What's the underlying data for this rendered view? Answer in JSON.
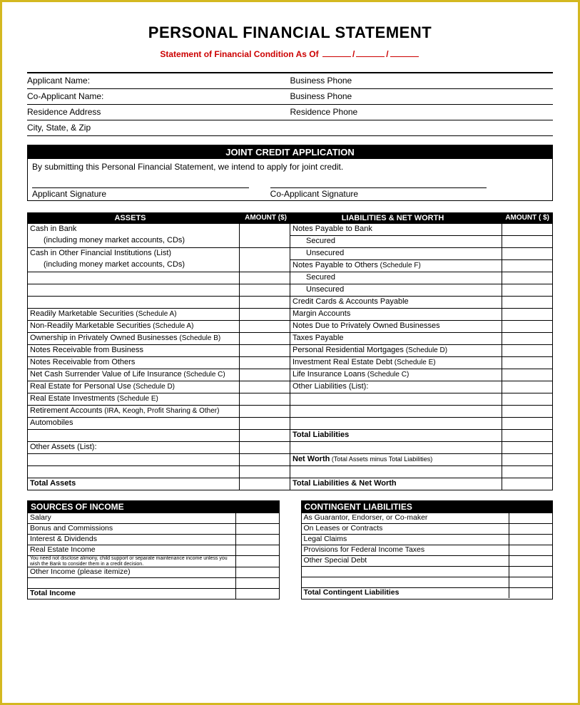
{
  "title": "PERSONAL FINANCIAL STATEMENT",
  "subtitle_prefix": "Statement of Financial Condition As Of ",
  "info": {
    "applicant_name": "Applicant Name:",
    "business_phone": "Business Phone",
    "co_applicant_name": "Co-Applicant Name:",
    "business_phone2": "Business Phone",
    "residence_address": "Residence Address",
    "residence_phone": "Residence Phone",
    "city_state_zip": "City, State, & Zip"
  },
  "joint": {
    "header": "JOINT CREDIT APPLICATION",
    "text": "By submitting this Personal Financial Statement, we intend to apply for joint credit.",
    "sig1": "Applicant Signature",
    "sig2": "Co-Applicant Signature"
  },
  "assets": {
    "header": "ASSETS",
    "amount": "AMOUNT ($)",
    "rows": [
      {
        "label": "Cash in Bank"
      },
      {
        "label": "(including money market accounts, CDs)",
        "indent": true,
        "noborder": true
      },
      {
        "label": "Cash in Other Financial Institutions (List)"
      },
      {
        "label": "(including money market accounts, CDs)",
        "indent": true,
        "noborder": true
      },
      {
        "label": ""
      },
      {
        "label": ""
      },
      {
        "label": ""
      },
      {
        "label": "Readily Marketable Securities",
        "sched": "(Schedule A)"
      },
      {
        "label": "Non-Readily Marketable Securities",
        "sched": "(Schedule A)"
      },
      {
        "label": "Ownership in Privately Owned Businesses",
        "sched": "(Schedule B)"
      },
      {
        "label": "Notes Receivable from Business"
      },
      {
        "label": "Notes Receivable from Others"
      },
      {
        "label": "Net Cash Surrender Value of Life Insurance",
        "sched": "(Schedule C)"
      },
      {
        "label": "Real Estate for Personal Use",
        "sched": "(Schedule D)"
      },
      {
        "label": "Real Estate Investments",
        "sched": "(Schedule E)"
      },
      {
        "label": "Retirement Accounts",
        "sched": "(IRA, Keogh, Profit Sharing & Other)"
      },
      {
        "label": "Automobiles"
      },
      {
        "label": ""
      },
      {
        "label": "Other Assets (List):"
      },
      {
        "label": ""
      },
      {
        "label": ""
      },
      {
        "label": "Total Assets",
        "bold": true
      }
    ]
  },
  "liabilities": {
    "header": "LIABILITIES & NET WORTH",
    "amount": "AMOUNT ( $)",
    "rows": [
      {
        "label": "Notes Payable to Bank"
      },
      {
        "label": "Secured",
        "indent": true
      },
      {
        "label": "Unsecured",
        "indent": true
      },
      {
        "label": "Notes Payable to Others",
        "sched": "(Schedule F)"
      },
      {
        "label": "Secured",
        "indent": true
      },
      {
        "label": "Unsecured",
        "indent": true
      },
      {
        "label": "Credit Cards & Accounts Payable"
      },
      {
        "label": "Margin Accounts"
      },
      {
        "label": "Notes Due to Privately Owned Businesses"
      },
      {
        "label": "Taxes Payable"
      },
      {
        "label": "Personal Residential Mortgages",
        "sched": "(Schedule D)"
      },
      {
        "label": "Investment Real Estate Debt",
        "sched": "(Schedule E)"
      },
      {
        "label": "Life Insurance Loans",
        "sched": "(Schedule C)"
      },
      {
        "label": "Other Liabilities (List):"
      },
      {
        "label": ""
      },
      {
        "label": ""
      },
      {
        "label": ""
      },
      {
        "label": "Total Liabilities",
        "bold": true
      },
      {
        "label": ""
      },
      {
        "label": "Net Worth",
        "bold": true,
        "note": "(Total Assets minus Total Liabilities)"
      },
      {
        "label": ""
      },
      {
        "label": "Total Liabilities & Net Worth",
        "bold": true
      }
    ]
  },
  "income": {
    "header": "SOURCES OF INCOME",
    "rows": [
      {
        "label": "Salary"
      },
      {
        "label": "Bonus and Commissions"
      },
      {
        "label": "Interest & Dividends"
      },
      {
        "label": "Real Estate Income"
      },
      {
        "label": "You need not disclose alimony, child support or separate maintenance income unless you wish the Bank to consider them in a credit decision.",
        "fine": true
      },
      {
        "label": "Other Income (please itemize)"
      },
      {
        "label": ""
      },
      {
        "label": "Total Income",
        "bold": true
      }
    ]
  },
  "contingent": {
    "header": "CONTINGENT LIABILITIES",
    "rows": [
      {
        "label": "As Guarantor, Endorser, or Co-maker"
      },
      {
        "label": "On Leases or Contracts"
      },
      {
        "label": "Legal Claims"
      },
      {
        "label": "Provisions for Federal Income Taxes"
      },
      {
        "label": "Other Special Debt"
      },
      {
        "label": ""
      },
      {
        "label": ""
      },
      {
        "label": "Total Contingent Liabilities",
        "bold": true
      }
    ]
  }
}
